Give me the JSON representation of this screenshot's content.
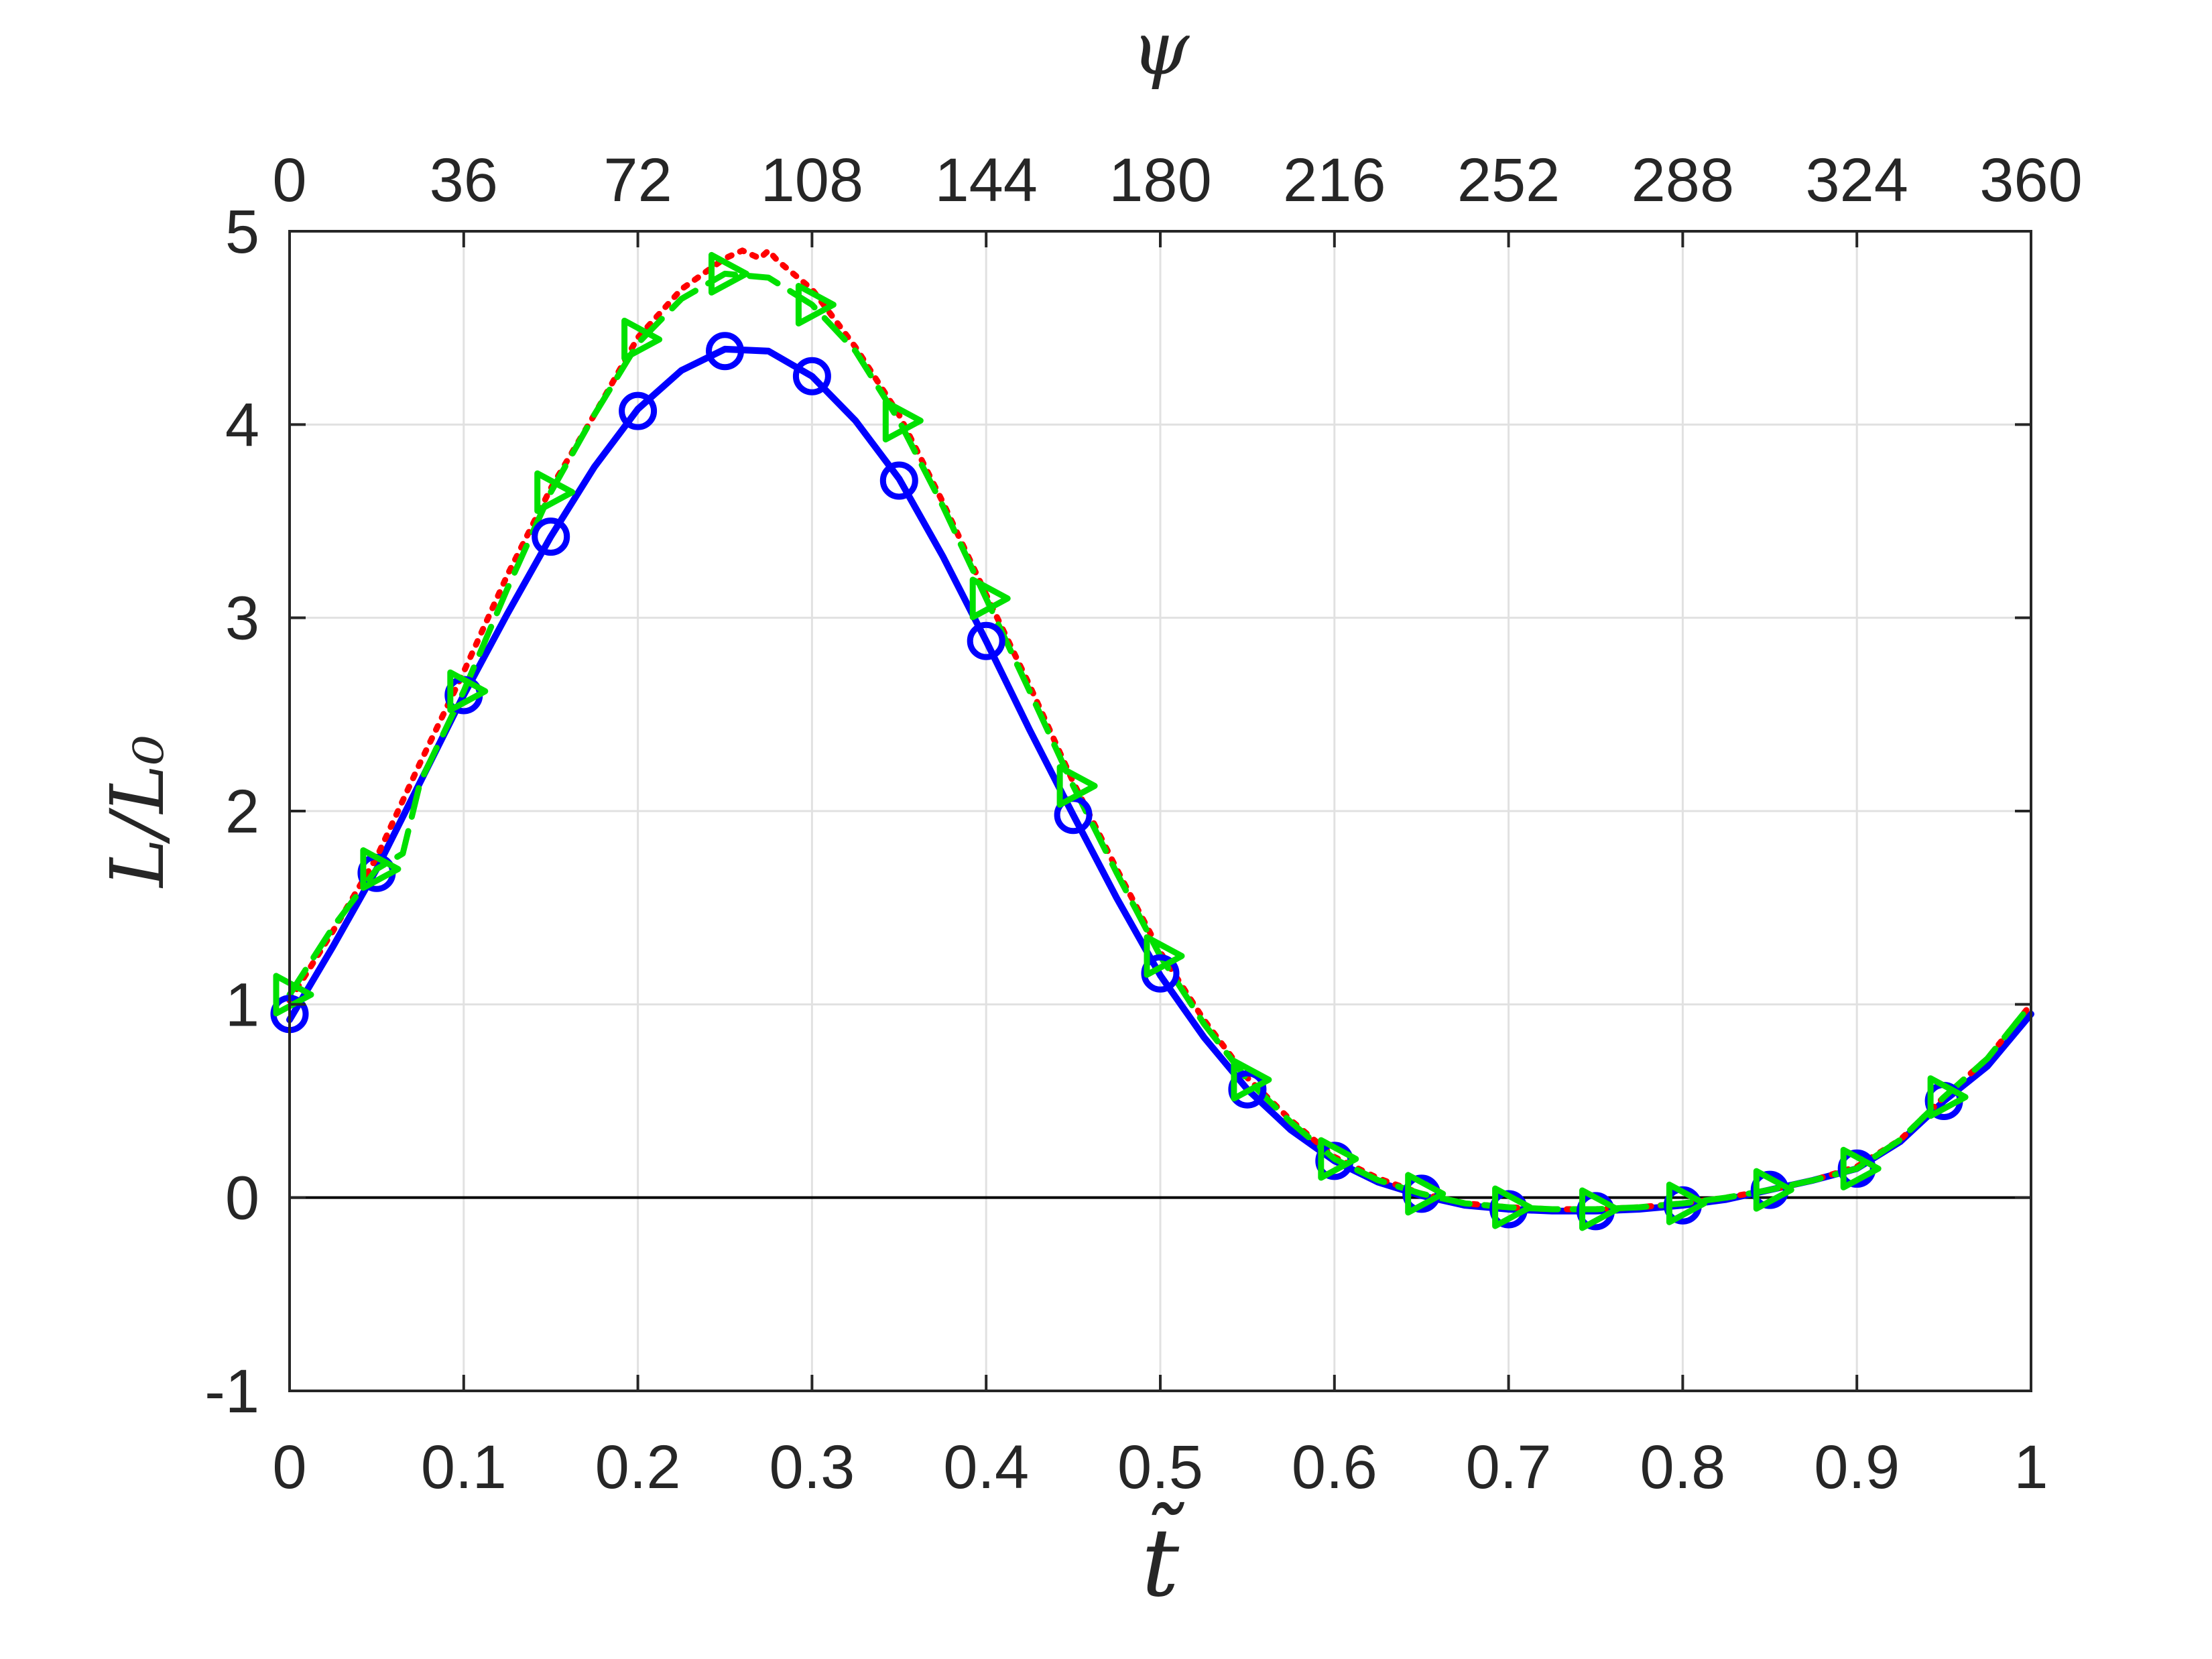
{
  "chart_data": {
    "type": "line",
    "title": "",
    "xlabel": "t̃",
    "ylabel": "L/L₀",
    "top_xlabel": "ψ",
    "xlim": [
      0,
      1
    ],
    "ylim": [
      -1,
      5
    ],
    "top_xlim": [
      0,
      360
    ],
    "grid": true,
    "legend": "none",
    "x_ticks": [
      "0",
      "0.1",
      "0.2",
      "0.3",
      "0.4",
      "0.5",
      "0.6",
      "0.7",
      "0.8",
      "0.9",
      "1"
    ],
    "top_x_ticks": [
      "0",
      "36",
      "72",
      "108",
      "144",
      "180",
      "216",
      "252",
      "288",
      "324",
      "360"
    ],
    "y_ticks": [
      "-1",
      "0",
      "1",
      "2",
      "3",
      "4",
      "5"
    ],
    "colors": {
      "blue": "#0000ff",
      "red": "#ff0000",
      "green": "#00e000",
      "zero_line": "#000000"
    },
    "series": [
      {
        "color": "#0000ff",
        "line": "solid",
        "marker": "circle",
        "x": [
          0,
          0.025,
          0.05,
          0.075,
          0.1,
          0.125,
          0.15,
          0.175,
          0.2,
          0.225,
          0.25,
          0.275,
          0.3,
          0.325,
          0.35,
          0.375,
          0.4,
          0.425,
          0.45,
          0.475,
          0.5,
          0.525,
          0.55,
          0.575,
          0.6,
          0.625,
          0.65,
          0.675,
          0.7,
          0.725,
          0.75,
          0.775,
          0.8,
          0.825,
          0.85,
          0.875,
          0.9,
          0.925,
          0.95,
          0.975,
          1
        ],
        "y": [
          0.92,
          1.3,
          1.7,
          2.15,
          2.6,
          3.02,
          3.42,
          3.78,
          4.08,
          4.28,
          4.39,
          4.38,
          4.25,
          4.02,
          3.72,
          3.32,
          2.88,
          2.42,
          1.98,
          1.55,
          1.15,
          0.83,
          0.56,
          0.35,
          0.19,
          0.08,
          0.01,
          -0.04,
          -0.06,
          -0.07,
          -0.07,
          -0.06,
          -0.04,
          -0.01,
          0.04,
          0.09,
          0.15,
          0.29,
          0.5,
          0.68,
          0.95
        ]
      },
      {
        "color": "#ff0000",
        "line": "dotted",
        "marker": "none",
        "x": [
          0,
          0.025,
          0.05,
          0.075,
          0.1,
          0.125,
          0.15,
          0.175,
          0.2,
          0.225,
          0.25,
          0.26,
          0.27,
          0.275,
          0.28,
          0.3,
          0.325,
          0.35,
          0.375,
          0.4,
          0.425,
          0.45,
          0.475,
          0.5,
          0.525,
          0.55,
          0.575,
          0.6,
          0.625,
          0.65,
          0.675,
          0.7,
          0.725,
          0.75,
          0.775,
          0.8,
          0.825,
          0.85,
          0.875,
          0.9,
          0.925,
          0.95,
          0.975,
          1
        ],
        "y": [
          1.02,
          1.38,
          1.76,
          2.25,
          2.72,
          3.22,
          3.67,
          4.05,
          4.45,
          4.7,
          4.86,
          4.9,
          4.86,
          4.9,
          4.85,
          4.7,
          4.4,
          4.05,
          3.6,
          3.12,
          2.65,
          2.15,
          1.7,
          1.27,
          0.92,
          0.62,
          0.4,
          0.21,
          0.1,
          0.02,
          -0.03,
          -0.05,
          -0.06,
          -0.06,
          -0.05,
          -0.03,
          0,
          0.04,
          0.09,
          0.16,
          0.3,
          0.52,
          0.72,
          1.0
        ]
      },
      {
        "color": "#00e000",
        "line": "dashed",
        "marker": "triangle-right",
        "x": [
          0,
          0.025,
          0.05,
          0.065,
          0.075,
          0.1,
          0.125,
          0.15,
          0.175,
          0.2,
          0.225,
          0.25,
          0.275,
          0.3,
          0.325,
          0.35,
          0.375,
          0.4,
          0.425,
          0.45,
          0.475,
          0.5,
          0.525,
          0.55,
          0.575,
          0.6,
          0.625,
          0.65,
          0.675,
          0.7,
          0.725,
          0.75,
          0.775,
          0.8,
          0.825,
          0.85,
          0.875,
          0.9,
          0.925,
          0.95,
          0.975,
          1
        ],
        "y": [
          1.05,
          1.4,
          1.7,
          1.78,
          2.15,
          2.62,
          3.15,
          3.65,
          4.05,
          4.42,
          4.65,
          4.78,
          4.76,
          4.62,
          4.38,
          4.02,
          3.58,
          3.1,
          2.62,
          2.13,
          1.68,
          1.25,
          0.9,
          0.61,
          0.39,
          0.2,
          0.09,
          0.02,
          -0.03,
          -0.05,
          -0.06,
          -0.06,
          -0.05,
          -0.03,
          0.0,
          0.04,
          0.09,
          0.15,
          0.3,
          0.52,
          0.72,
          1.0
        ]
      }
    ],
    "markers": {
      "blue_circle_x": [
        0,
        0.05,
        0.1,
        0.15,
        0.2,
        0.25,
        0.3,
        0.35,
        0.4,
        0.45,
        0.5,
        0.55,
        0.6,
        0.65,
        0.7,
        0.75,
        0.8,
        0.85,
        0.9,
        0.95
      ],
      "blue_circle_y": [
        0.95,
        1.68,
        2.6,
        3.42,
        4.07,
        4.38,
        4.25,
        3.71,
        2.88,
        1.98,
        1.16,
        0.56,
        0.19,
        0.02,
        -0.06,
        -0.07,
        -0.04,
        0.04,
        0.15,
        0.5
      ],
      "green_triangle_x": [
        0,
        0.05,
        0.1,
        0.15,
        0.2,
        0.25,
        0.3,
        0.35,
        0.4,
        0.45,
        0.5,
        0.55,
        0.6,
        0.65,
        0.7,
        0.75,
        0.8,
        0.85,
        0.9,
        0.95
      ],
      "green_triangle_y": [
        1.05,
        1.7,
        2.62,
        3.65,
        4.44,
        4.78,
        4.62,
        4.02,
        3.1,
        2.13,
        1.25,
        0.61,
        0.2,
        0.02,
        -0.05,
        -0.06,
        -0.03,
        0.04,
        0.15,
        0.52
      ]
    }
  }
}
